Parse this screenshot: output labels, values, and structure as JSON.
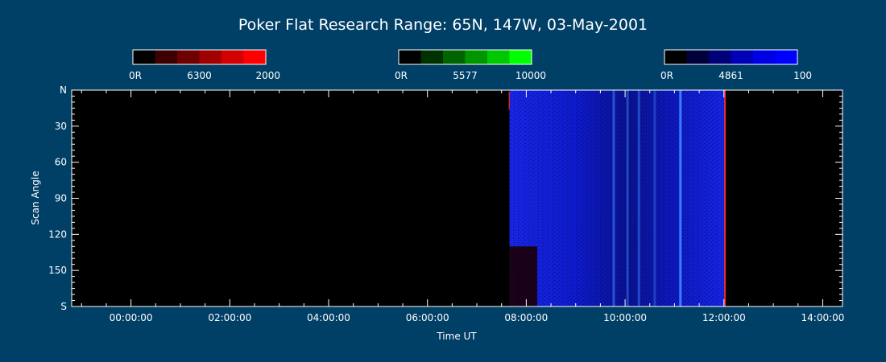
{
  "chart_data": {
    "type": "heatmap",
    "title": "Poker Flat Research Range: 65N, 147W, 03-May-2001",
    "xlabel": "Time UT",
    "ylabel": "Scan Angle",
    "x_unit": "hours UT",
    "xlim": [
      -1.2,
      14.4
    ],
    "ylim": [
      0,
      180
    ],
    "x_ticks": [
      {
        "value": 0,
        "label": "00:00:00"
      },
      {
        "value": 2,
        "label": "02:00:00"
      },
      {
        "value": 4,
        "label": "04:00:00"
      },
      {
        "value": 6,
        "label": "06:00:00"
      },
      {
        "value": 8,
        "label": "08:00:00"
      },
      {
        "value": 10,
        "label": "10:00:00"
      },
      {
        "value": 12,
        "label": "12:00:00"
      },
      {
        "value": 14,
        "label": "14:00:00"
      }
    ],
    "y_ticks": [
      {
        "value": 0,
        "label": "N"
      },
      {
        "value": 30,
        "label": "30"
      },
      {
        "value": 60,
        "label": "60"
      },
      {
        "value": 90,
        "label": "90"
      },
      {
        "value": 120,
        "label": "120"
      },
      {
        "value": 150,
        "label": "150"
      },
      {
        "value": 180,
        "label": "S"
      }
    ],
    "colorbars": [
      {
        "channel": "6300",
        "min_label": "0R",
        "max_label": "2000",
        "color": "#ff0000",
        "steps": [
          "#000000",
          "#3c0000",
          "#6e0000",
          "#a00000",
          "#d20000",
          "#ff0000"
        ]
      },
      {
        "channel": "5577",
        "min_label": "0R",
        "max_label": "10000",
        "color": "#00ff00",
        "steps": [
          "#000000",
          "#003200",
          "#006400",
          "#009600",
          "#00c800",
          "#00ff00"
        ]
      },
      {
        "channel": "4861",
        "min_label": "0R",
        "max_label": "100",
        "color": "#0000ff",
        "steps": [
          "#000000",
          "#00003c",
          "#000078",
          "#0000b4",
          "#0000e6",
          "#0000ff"
        ]
      }
    ],
    "data_window": {
      "start": 7.66,
      "end": 12.02
    },
    "features": [
      {
        "channel": "4861",
        "kind": "band",
        "x_start": 7.66,
        "x_end": 12.02,
        "y_start": 0,
        "y_end": 180,
        "intensity": 0.9
      },
      {
        "channel": "4861",
        "kind": "streak",
        "x": 9.77,
        "intensity": 0.6
      },
      {
        "channel": "4861",
        "kind": "streak",
        "x": 10.05,
        "intensity": 0.5
      },
      {
        "channel": "4861",
        "kind": "streak",
        "x": 10.28,
        "intensity": 0.5
      },
      {
        "channel": "4861",
        "kind": "streak",
        "x": 10.6,
        "intensity": 0.4
      },
      {
        "channel": "4861",
        "kind": "streak",
        "x": 11.12,
        "intensity": 1.0
      },
      {
        "channel": "6300",
        "kind": "patch",
        "x_start": 7.66,
        "x_end": 8.22,
        "y_start": 130,
        "y_end": 180,
        "intensity": 0.25
      },
      {
        "channel": "6300",
        "kind": "edge",
        "x": 12.02,
        "intensity": 0.9
      }
    ]
  }
}
